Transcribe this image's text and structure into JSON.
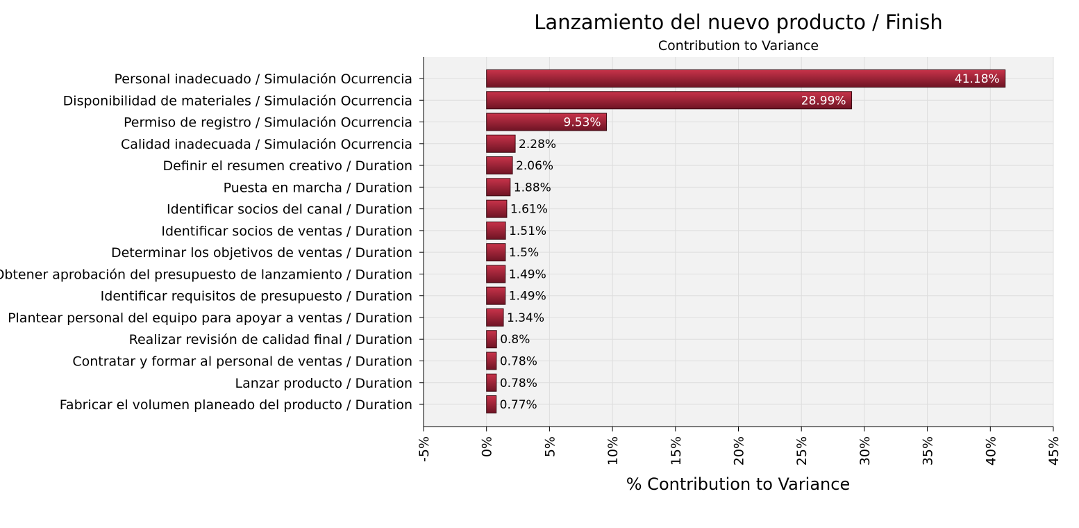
{
  "chart_data": {
    "type": "bar",
    "orientation": "horizontal",
    "title": "Lanzamiento del nuevo producto / Finish",
    "subtitle": "Contribution to Variance",
    "xlabel": "% Contribution to Variance",
    "ylabel": "",
    "xlim": [
      -5,
      45
    ],
    "xticks": [
      "-5%",
      "0%",
      "5%",
      "10%",
      "15%",
      "20%",
      "25%",
      "30%",
      "35%",
      "40%",
      "45%"
    ],
    "grid": true,
    "categories": [
      "Personal inadecuado / Simulación Ocurrencia",
      "Disponibilidad de materiales / Simulación Ocurrencia",
      "Permiso de registro / Simulación Ocurrencia",
      "Calidad inadecuada / Simulación Ocurrencia",
      "Definir el resumen creativo / Duration",
      "Puesta en marcha / Duration",
      "Identificar socios del canal / Duration",
      "Identificar socios de ventas / Duration",
      "Determinar los objetivos de ventas / Duration",
      "Obtener aprobación del presupuesto de lanzamiento / Duration",
      "Identificar requisitos de presupuesto / Duration",
      "Plantear personal del equipo para apoyar a ventas / Duration",
      "Realizar revisión de calidad final / Duration",
      "Contratar y formar al personal de ventas / Duration",
      "Lanzar producto / Duration",
      "Fabricar el volumen planeado del producto / Duration"
    ],
    "values": [
      41.18,
      28.99,
      9.53,
      2.28,
      2.06,
      1.88,
      1.61,
      1.51,
      1.5,
      1.49,
      1.49,
      1.34,
      0.8,
      0.78,
      0.78,
      0.77
    ],
    "value_labels": [
      "41.18%",
      "28.99%",
      "9.53%",
      "2.28%",
      "2.06%",
      "1.88%",
      "1.61%",
      "1.51%",
      "1.5%",
      "1.49%",
      "1.49%",
      "1.34%",
      "0.8%",
      "0.78%",
      "0.78%",
      "0.77%"
    ],
    "colors": {
      "bar_top": "#c8334a",
      "bar_bottom": "#6e1424",
      "bar_stroke": "#3a0a12",
      "plot_bg": "#f2f2f2",
      "grid": "#dddddd",
      "label_inside": "#ffffff",
      "label_outside": "#000000"
    }
  }
}
